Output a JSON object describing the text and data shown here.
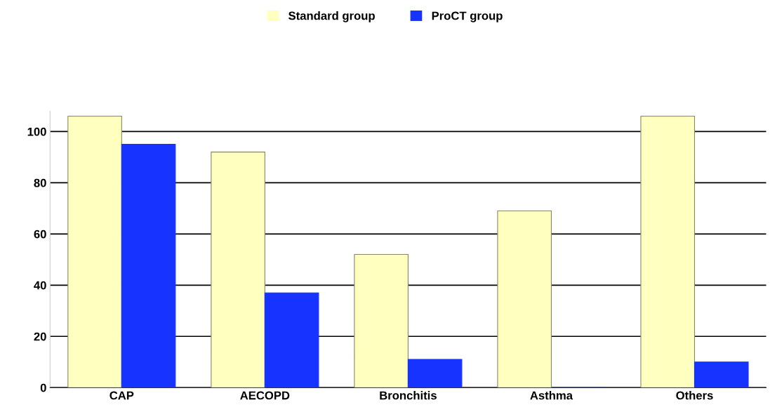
{
  "chart_data": {
    "type": "bar",
    "categories": [
      "CAP",
      "AECOPD",
      "Bronchitis",
      "Asthma",
      "Others"
    ],
    "series": [
      {
        "name": "Standard group",
        "color": "#ffffc0",
        "values": [
          106,
          92,
          52,
          69,
          106
        ]
      },
      {
        "name": "ProCT group",
        "color": "#1633ff",
        "values": [
          95,
          37,
          11,
          0,
          10
        ]
      }
    ],
    "ylim": [
      0,
      108
    ],
    "yticks": [
      0,
      20,
      40,
      60,
      80,
      100
    ],
    "grid": "y",
    "legend": "top"
  }
}
